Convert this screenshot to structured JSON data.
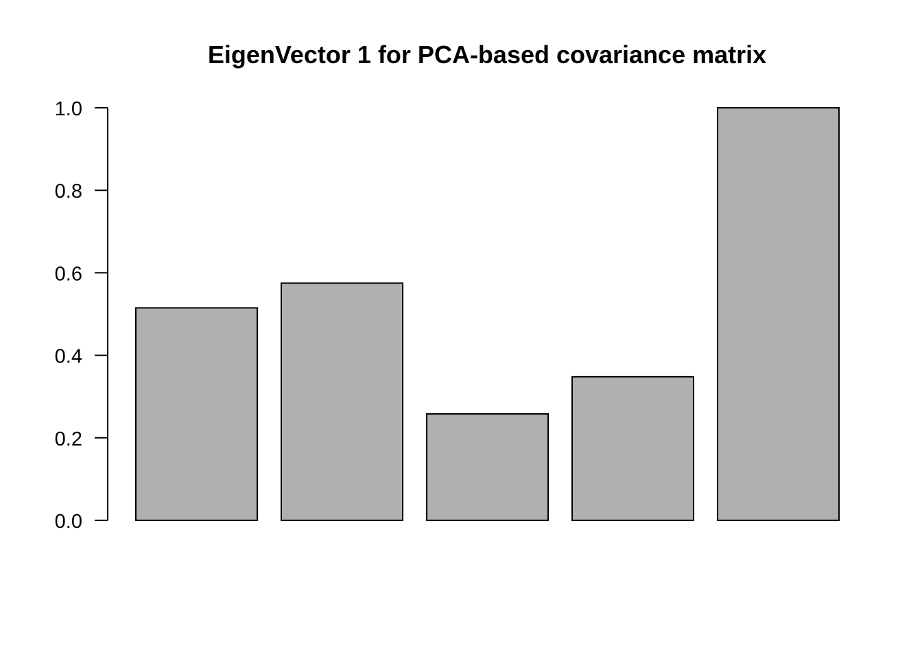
{
  "chart_data": {
    "type": "bar",
    "title": "EigenVector 1 for PCA-based covariance matrix",
    "xlabel": "",
    "ylabel": "",
    "categories": [
      "",
      "",
      "",
      "",
      ""
    ],
    "values": [
      0.515,
      0.575,
      0.258,
      0.348,
      1.0
    ],
    "ylim": [
      0,
      1
    ],
    "yticks": [
      0.0,
      0.2,
      0.4,
      0.6,
      0.8,
      1.0
    ],
    "ytick_labels": [
      "0.0",
      "0.2",
      "0.4",
      "0.6",
      "0.8",
      "1.0"
    ],
    "bar_color": "#b0b0b0",
    "grid": false,
    "legend": "none"
  }
}
